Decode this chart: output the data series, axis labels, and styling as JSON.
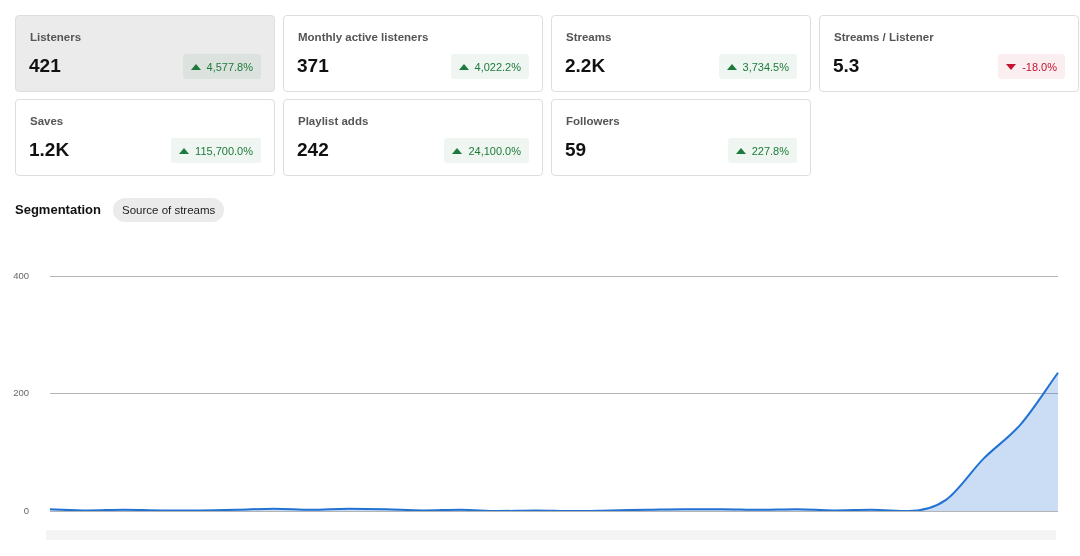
{
  "chart_data": [
    {
      "type": "other",
      "categories": [
        "Listeners"
      ],
      "series": [
        {
          "values": [
            421
          ],
          "value_labels": [
            "421"
          ],
          "colors": [
            "#ebebeb"
          ]
        },
        {
          "values": [
            4577.8
          ],
          "value_labels": [
            "4,577.8%"
          ],
          "colors": [
            "#1e7a3c"
          ]
        }
      ]
    },
    {
      "type": "other",
      "categories": [
        "Monthly active listeners"
      ],
      "series": [
        {
          "values": [
            371
          ],
          "value_labels": [
            "371"
          ],
          "colors": [
            "#ffffff"
          ]
        },
        {
          "values": [
            4022.2
          ],
          "value_labels": [
            "4,022.2%"
          ],
          "colors": [
            "#1e7a3c"
          ]
        }
      ]
    },
    {
      "type": "other",
      "categories": [
        "Streams"
      ],
      "series": [
        {
          "values": [
            2200
          ],
          "value_labels": [
            "2.2K"
          ],
          "colors": [
            "#ffffff"
          ]
        },
        {
          "values": [
            3734.5
          ],
          "value_labels": [
            "3,734.5%"
          ],
          "colors": [
            "#1e7a3c"
          ]
        }
      ]
    },
    {
      "type": "other",
      "categories": [
        "Streams / Listener"
      ],
      "series": [
        {
          "values": [
            5.3
          ],
          "value_labels": [
            "5.3"
          ],
          "colors": [
            "#ffffff"
          ]
        },
        {
          "values": [
            -18.0
          ],
          "value_labels": [
            "-18.0%"
          ],
          "colors": [
            "#c41230"
          ]
        }
      ]
    },
    {
      "type": "other",
      "categories": [
        "Saves"
      ],
      "series": [
        {
          "values": [
            1200
          ],
          "value_labels": [
            "1.2K"
          ],
          "colors": [
            "#ffffff"
          ]
        },
        {
          "values": [
            115700.0
          ],
          "value_labels": [
            "115,700.0%"
          ],
          "colors": [
            "#1e7a3c"
          ]
        }
      ]
    },
    {
      "type": "other",
      "categories": [
        "Playlist adds"
      ],
      "series": [
        {
          "values": [
            242
          ],
          "value_labels": [
            "242"
          ],
          "colors": [
            "#ffffff"
          ]
        },
        {
          "values": [
            24100.0
          ],
          "value_labels": [
            "24,100.0%"
          ],
          "colors": [
            "#1e7a3c"
          ]
        }
      ]
    },
    {
      "type": "other",
      "categories": [
        "Followers"
      ],
      "series": [
        {
          "values": [
            59
          ],
          "value_labels": [
            "59"
          ],
          "colors": [
            "#ffffff"
          ]
        },
        {
          "values": [
            227.8
          ],
          "value_labels": [
            "227.8%"
          ],
          "colors": [
            "#1e7a3c"
          ]
        }
      ]
    },
    {
      "type": "area",
      "title": "Segmentation",
      "subtitle": "Source of streams",
      "categories": [
        null,
        null,
        null,
        null,
        null,
        null,
        null,
        null,
        null,
        null,
        null,
        null,
        null,
        null,
        null,
        null,
        null,
        null,
        null,
        null,
        null,
        null,
        null,
        null,
        null,
        null,
        null,
        null
      ],
      "series": [
        {
          "color": "#2272d4",
          "values": [
            3,
            1,
            2,
            1,
            1,
            2,
            4,
            2,
            4,
            3,
            1,
            2,
            0,
            1,
            0,
            1,
            2,
            3,
            3,
            2,
            3,
            1,
            2,
            0,
            19,
            89,
            148,
            236
          ]
        }
      ],
      "ylim": [
        0,
        400
      ],
      "yticks": [
        0,
        200,
        400
      ],
      "grid": "y",
      "tick_labels": "y",
      "marker": "none"
    }
  ]
}
